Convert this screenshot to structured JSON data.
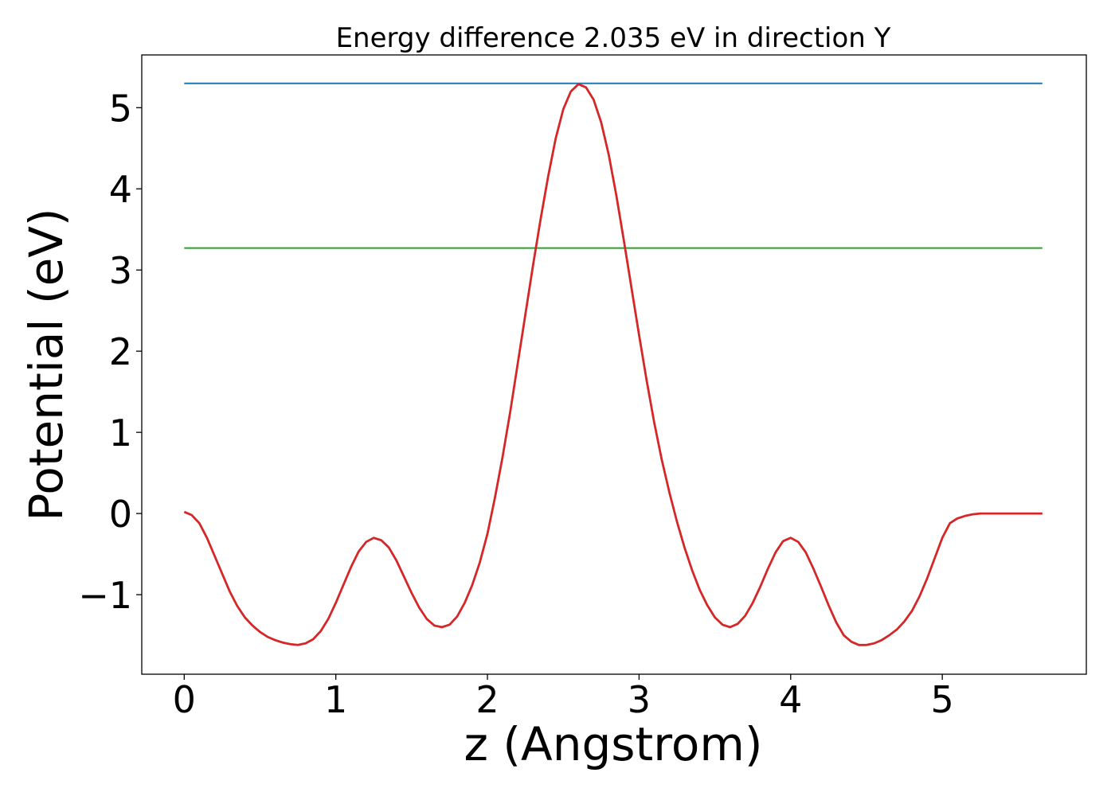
{
  "chart_data": {
    "type": "line",
    "title": "Energy difference 2.035 eV in direction Y",
    "xlabel": "z (Angstrom)",
    "ylabel": "Potential (eV)",
    "xlim": [
      -0.28,
      5.95
    ],
    "ylim": [
      -1.98,
      5.65
    ],
    "xticks": [
      0,
      1,
      2,
      3,
      4,
      5
    ],
    "xtick_labels": [
      "0",
      "1",
      "2",
      "3",
      "4",
      "5"
    ],
    "yticks": [
      -1,
      0,
      1,
      2,
      3,
      4,
      5
    ],
    "ytick_labels": [
      "−1",
      "0",
      "1",
      "2",
      "3",
      "4",
      "5"
    ],
    "grid": false,
    "legend": "none",
    "series": [
      {
        "color": "#d62728",
        "x": [
          0,
          0.05,
          0.1,
          0.15,
          0.2,
          0.25,
          0.3,
          0.35,
          0.4,
          0.45,
          0.5,
          0.55,
          0.6,
          0.65,
          0.7,
          0.75,
          0.8,
          0.85,
          0.9,
          0.95,
          1.0,
          1.05,
          1.1,
          1.15,
          1.2,
          1.25,
          1.3,
          1.35,
          1.4,
          1.45,
          1.5,
          1.55,
          1.6,
          1.65,
          1.7,
          1.75,
          1.8,
          1.85,
          1.9,
          1.95,
          2.0,
          2.05,
          2.1,
          2.15,
          2.2,
          2.25,
          2.3,
          2.35,
          2.4,
          2.45,
          2.5,
          2.55,
          2.6,
          2.65,
          2.7,
          2.75,
          2.8,
          2.85,
          2.9,
          2.95,
          3.0,
          3.05,
          3.1,
          3.15,
          3.2,
          3.25,
          3.3,
          3.35,
          3.4,
          3.45,
          3.5,
          3.55,
          3.6,
          3.65,
          3.7,
          3.75,
          3.8,
          3.85,
          3.9,
          3.95,
          4.0,
          4.05,
          4.1,
          4.15,
          4.2,
          4.25,
          4.3,
          4.35,
          4.4,
          4.45,
          4.5,
          4.55,
          4.6,
          4.65,
          4.7,
          4.75,
          4.8,
          4.85,
          4.9,
          4.95,
          5.0,
          5.05,
          5.1,
          5.15,
          5.2,
          5.25,
          5.3,
          5.35,
          5.4,
          5.45,
          5.5,
          5.55,
          5.6,
          5.66
        ],
        "y": [
          0.02,
          -0.02,
          -0.12,
          -0.3,
          -0.52,
          -0.74,
          -0.96,
          -1.14,
          -1.28,
          -1.38,
          -1.46,
          -1.52,
          -1.56,
          -1.59,
          -1.61,
          -1.62,
          -1.6,
          -1.55,
          -1.45,
          -1.3,
          -1.1,
          -0.88,
          -0.66,
          -0.47,
          -0.35,
          -0.3,
          -0.33,
          -0.42,
          -0.58,
          -0.78,
          -0.98,
          -1.16,
          -1.3,
          -1.38,
          -1.4,
          -1.37,
          -1.27,
          -1.1,
          -0.88,
          -0.6,
          -0.25,
          0.2,
          0.7,
          1.25,
          1.85,
          2.45,
          3.05,
          3.62,
          4.15,
          4.62,
          4.98,
          5.2,
          5.29,
          5.25,
          5.1,
          4.82,
          4.42,
          3.92,
          3.36,
          2.78,
          2.2,
          1.64,
          1.12,
          0.66,
          0.26,
          -0.1,
          -0.42,
          -0.7,
          -0.94,
          -1.13,
          -1.28,
          -1.37,
          -1.4,
          -1.36,
          -1.26,
          -1.1,
          -0.9,
          -0.68,
          -0.48,
          -0.34,
          -0.3,
          -0.35,
          -0.48,
          -0.68,
          -0.9,
          -1.13,
          -1.34,
          -1.5,
          -1.58,
          -1.62,
          -1.62,
          -1.6,
          -1.56,
          -1.5,
          -1.43,
          -1.33,
          -1.2,
          -1.02,
          -0.8,
          -0.55,
          -0.3,
          -0.12,
          -0.06,
          -0.03,
          -0.01,
          0.0,
          0.0,
          0.0,
          0.0,
          0.0,
          0.0,
          0.0,
          0.0,
          0.0
        ]
      },
      {
        "color": "#1f77b4",
        "x": [
          0,
          5.66
        ],
        "y": [
          5.3,
          5.3
        ]
      },
      {
        "color": "#2ca02c",
        "x": [
          0,
          5.66
        ],
        "y": [
          3.27,
          3.27
        ]
      }
    ]
  }
}
